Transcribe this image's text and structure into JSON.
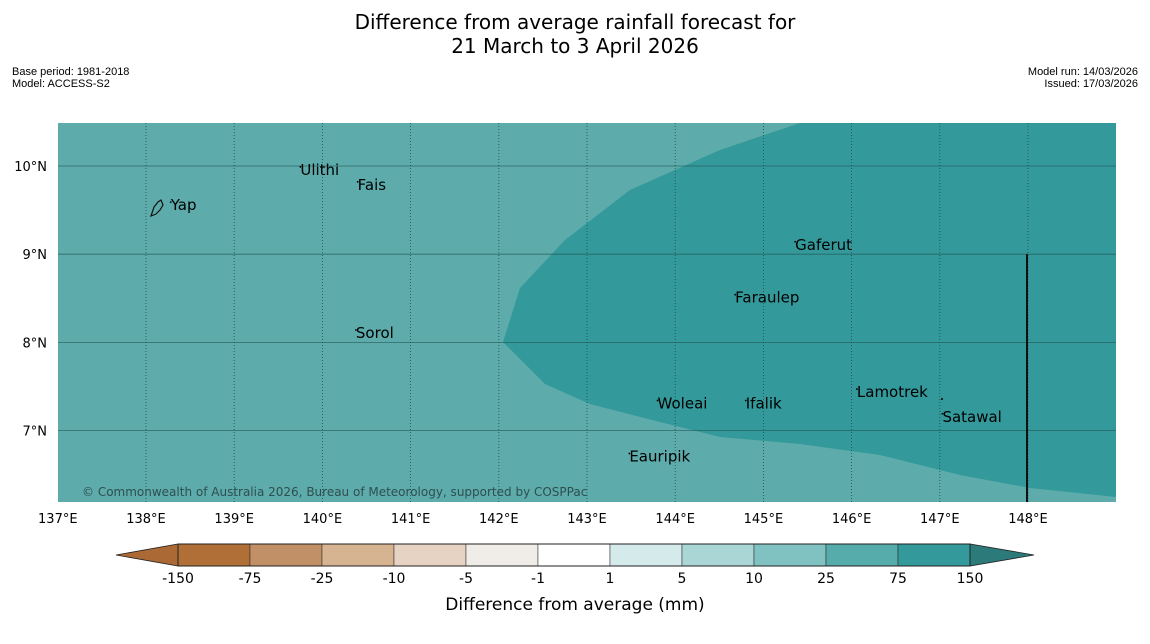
{
  "header": {
    "title_line1": "Difference from average rainfall forecast for",
    "title_line2": "21 March to 3 April 2026",
    "base_period": "Base period: 1981-2018",
    "model": "Model: ACCESS-S2",
    "model_run": "Model run: 14/03/2026",
    "issued": "Issued: 17/03/2026"
  },
  "map": {
    "lon_ticks": [
      "137°E",
      "138°E",
      "139°E",
      "140°E",
      "141°E",
      "142°E",
      "143°E",
      "144°E",
      "145°E",
      "146°E",
      "147°E",
      "148°E"
    ],
    "lat_ticks": [
      "10°N",
      "9°N",
      "8°N",
      "7°N"
    ],
    "places": [
      {
        "name": "Yap",
        "lon": 138.28,
        "lat": 9.5
      },
      {
        "name": "Ulithi",
        "lon": 139.75,
        "lat": 9.9
      },
      {
        "name": "Fais",
        "lon": 140.4,
        "lat": 9.73
      },
      {
        "name": "Gaferut",
        "lon": 145.36,
        "lat": 9.05
      },
      {
        "name": "Faraulep",
        "lon": 144.68,
        "lat": 8.45
      },
      {
        "name": "Sorol",
        "lon": 140.38,
        "lat": 8.05
      },
      {
        "name": "Lamotrek",
        "lon": 146.06,
        "lat": 7.38
      },
      {
        "name": "Woleai",
        "lon": 143.8,
        "lat": 7.25
      },
      {
        "name": "Ifalik",
        "lon": 144.8,
        "lat": 7.25
      },
      {
        "name": "Satawal",
        "lon": 147.03,
        "lat": 7.1
      },
      {
        "name": "Eauripik",
        "lon": 143.48,
        "lat": 6.65
      }
    ],
    "copyright": "© Commonwealth of Australia 2026, Bureau of Meteorology, supported by COSPPac",
    "colors": {
      "region_25_75": "#5dabab",
      "region_75_150": "#33999a"
    }
  },
  "colorbar": {
    "title": "Difference from average (mm)",
    "ticks": [
      "-150",
      "-75",
      "-25",
      "-10",
      "-5",
      "-1",
      "1",
      "5",
      "10",
      "25",
      "75",
      "150"
    ],
    "colors": [
      "#ab6a35",
      "#b06f37",
      "#c29066",
      "#d6b391",
      "#e6d3c4",
      "#f0ede8",
      "#ffffff",
      "#d5eaea",
      "#aad6d6",
      "#80c1c1",
      "#56abab",
      "#33999a",
      "#2d7a7b"
    ]
  }
}
